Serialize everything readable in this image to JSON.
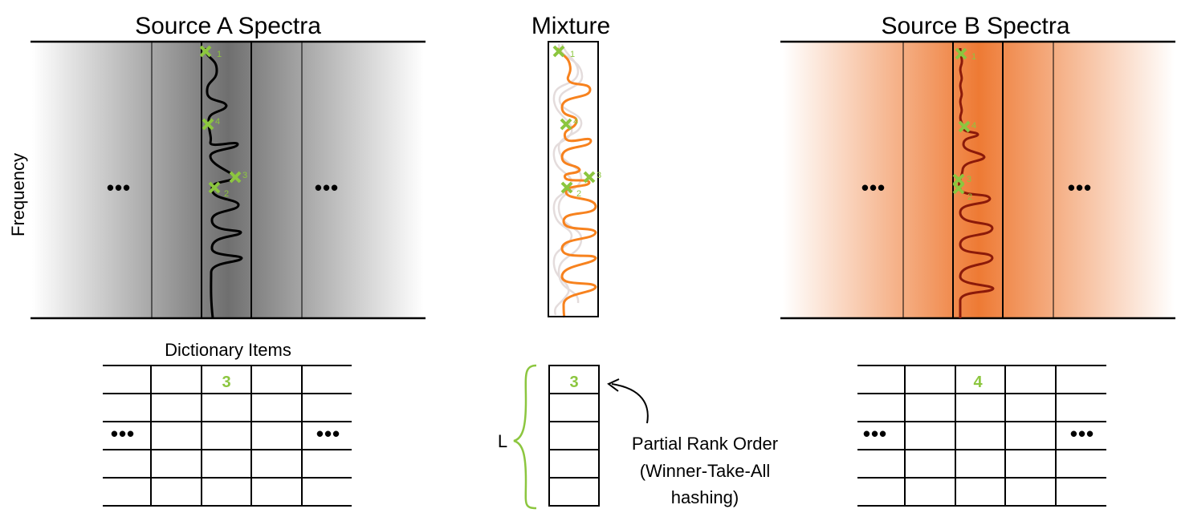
{
  "titles": {
    "source_a": "Source A Spectra",
    "mixture": "Mixture",
    "source_b": "Source B Spectra"
  },
  "labels": {
    "frequency": "Frequency",
    "dictionary_items": "Dictionary Items",
    "brace_L": "L",
    "rank_line1": "Partial Rank Order",
    "rank_line2": "(Winner-Take-All",
    "rank_line3": "hashing)"
  },
  "ellipsis": "•••",
  "markers": {
    "source_a": [
      "1",
      "4",
      "3",
      "2"
    ],
    "mixture": [
      "1",
      "4",
      "3",
      "2"
    ],
    "source_b": [
      "1",
      "4",
      "3",
      "2"
    ]
  },
  "cells": {
    "source_a_top": "3",
    "mixture_top": "3",
    "source_b_top": "4"
  },
  "colors": {
    "marker_green": "#8cc63f",
    "mixture_orange": "#f7821e",
    "source_b_dark": "#8b1a0a",
    "source_b_fill": "#ee7a34",
    "brace_green": "#8cc63f"
  }
}
